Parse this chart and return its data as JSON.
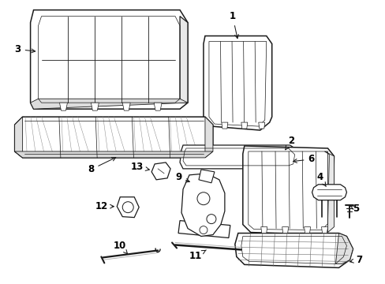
{
  "background_color": "#ffffff",
  "line_color": "#1a1a1a",
  "label_color": "#000000",
  "lw": 0.9,
  "figsize": [
    4.89,
    3.6
  ],
  "dpi": 100
}
